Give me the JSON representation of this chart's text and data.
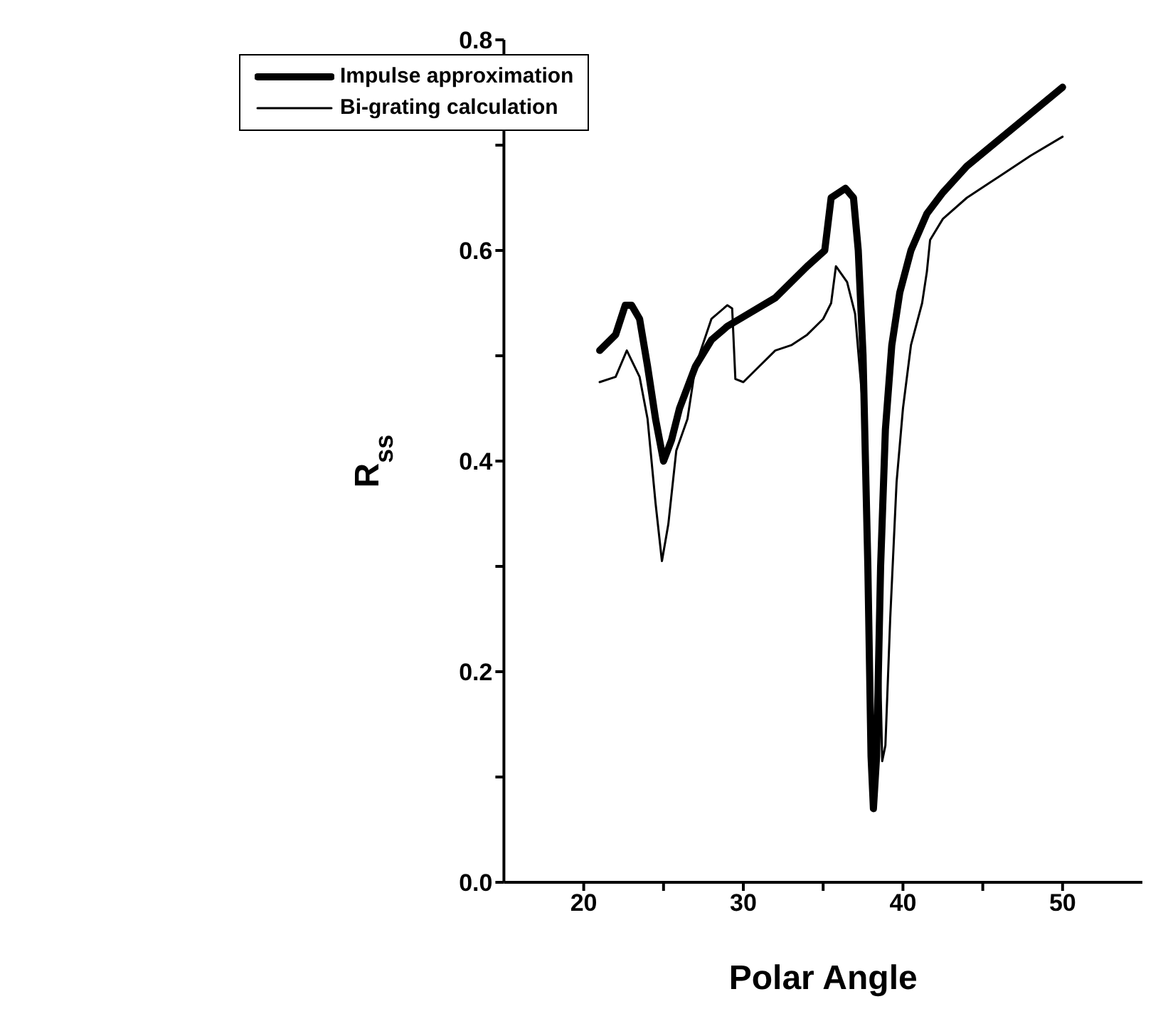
{
  "chart_data": {
    "type": "line",
    "xlabel": "Polar Angle",
    "ylabel": "R$_{ss}$",
    "xlim": [
      15,
      55
    ],
    "ylim": [
      0,
      0.8
    ],
    "xticks": [
      20,
      {
        "value": 25,
        "label": null
      },
      30,
      {
        "value": 35,
        "label": null
      },
      40,
      {
        "value": 45,
        "label": null
      },
      50
    ],
    "yticks": [
      {
        "value": 0,
        "label": "0.0"
      },
      {
        "value": 0.1,
        "label": null
      },
      0.2,
      {
        "value": 0.3,
        "label": null
      },
      0.4,
      {
        "value": 0.5,
        "label": null
      },
      0.6,
      {
        "value": 0.7,
        "label": null
      },
      0.8
    ],
    "grid": false,
    "legend": "top left",
    "marker": "none",
    "line_style": "solid",
    "series": [
      {
        "name": "Impulse approximation",
        "color": "#000000",
        "x": [
          21,
          22,
          22.6,
          23,
          23.5,
          24,
          24.5,
          25,
          25.5,
          26,
          27,
          28,
          29,
          30,
          32,
          34,
          35.1,
          35.5,
          36.4,
          36.9,
          37.2,
          37.5,
          37.8,
          38.0,
          38.15,
          38.35,
          38.6,
          38.9,
          39.3,
          39.8,
          40.5,
          41.5,
          42.5,
          44,
          46,
          48,
          50
        ],
        "values": [
          0.505,
          0.52,
          0.548,
          0.548,
          0.535,
          0.49,
          0.44,
          0.4,
          0.42,
          0.45,
          0.49,
          0.515,
          0.528,
          0.537,
          0.555,
          0.585,
          0.6,
          0.65,
          0.659,
          0.65,
          0.6,
          0.5,
          0.3,
          0.12,
          0.07,
          0.12,
          0.3,
          0.43,
          0.51,
          0.56,
          0.6,
          0.635,
          0.655,
          0.68,
          0.705,
          0.73,
          0.755
        ]
      },
      {
        "name": "Bi-grating calculation",
        "color": "#000000",
        "x": [
          21,
          22,
          22.7,
          23.5,
          24,
          24.5,
          24.9,
          25.3,
          25.8,
          26.5,
          27,
          28,
          29,
          29.3,
          29.5,
          30,
          31,
          32,
          33,
          34,
          35,
          35.5,
          35.8,
          36.5,
          37,
          37.5,
          37.9,
          38.1,
          38.3,
          38.5,
          38.7,
          38.9,
          39.2,
          39.6,
          40,
          40.5,
          41.2,
          41.5,
          41.7,
          42.5,
          44,
          46,
          48,
          50
        ],
        "values": [
          0.475,
          0.48,
          0.505,
          0.48,
          0.44,
          0.36,
          0.305,
          0.34,
          0.41,
          0.44,
          0.49,
          0.535,
          0.548,
          0.545,
          0.478,
          0.475,
          0.49,
          0.505,
          0.51,
          0.52,
          0.535,
          0.55,
          0.585,
          0.57,
          0.54,
          0.45,
          0.3,
          0.12,
          0.08,
          0.25,
          0.115,
          0.13,
          0.25,
          0.38,
          0.45,
          0.51,
          0.55,
          0.58,
          0.61,
          0.63,
          0.65,
          0.67,
          0.69,
          0.708
        ]
      }
    ]
  }
}
